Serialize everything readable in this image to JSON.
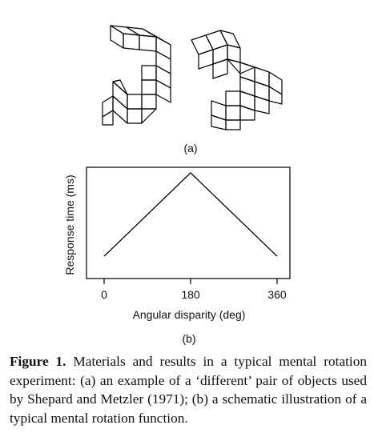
{
  "panel_a_label": "(a)",
  "panel_b_label": "(b)",
  "caption": {
    "bold": "Figure 1.",
    "text": " Materials and results in a typical mental rotation experiment: (a) an example of a ‘different’ pair of objects used by Shepard and Metzler (1971); (b) a schematic illustration of a typical mental rotation function."
  },
  "chart_data": {
    "type": "line",
    "title": "",
    "xlabel": "Angular disparity (deg)",
    "ylabel": "Response time (ms)",
    "xticks": [
      "0",
      "180",
      "360"
    ],
    "xlim": [
      0,
      360
    ],
    "ylim": [
      0,
      1
    ],
    "grid": false,
    "schematic": true,
    "series": [
      {
        "x": [
          0,
          180,
          360
        ],
        "y": [
          0.2,
          0.95,
          0.2
        ]
      }
    ]
  }
}
